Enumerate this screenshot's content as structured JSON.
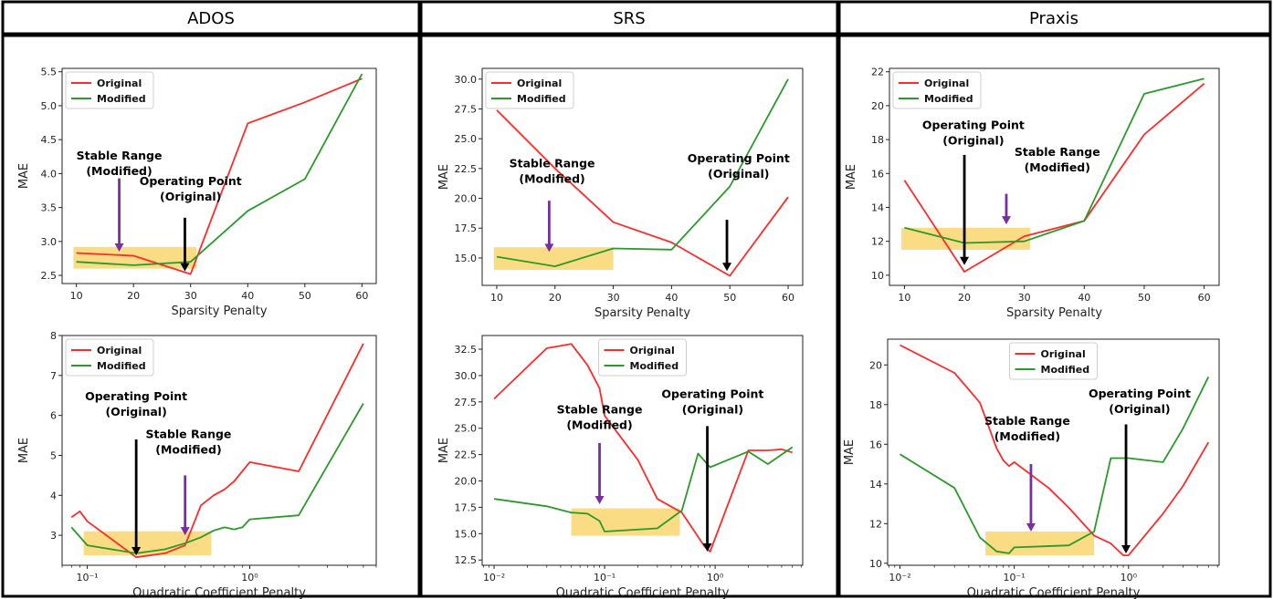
{
  "columns": [
    "ADOS",
    "SRS",
    "Praxis"
  ],
  "colors": {
    "original": "#ff2a2a",
    "modified": "#2a9a2a",
    "highlight": "#f7c534",
    "arrow_purple": "#7a2fa0",
    "arrow_black": "#000000"
  },
  "chart_data": [
    {
      "id": "ados_sparsity",
      "type": "line",
      "xlabel": "Sparsity Penalty",
      "ylabel": "MAE",
      "xscale": "linear",
      "xlim": [
        7.5,
        62.5
      ],
      "ylim": [
        2.38,
        5.55
      ],
      "xticks": [
        10,
        20,
        30,
        40,
        50,
        60
      ],
      "xtick_labels": [
        "10",
        "20",
        "30",
        "40",
        "50",
        "60"
      ],
      "yticks": [
        2.5,
        3.0,
        3.5,
        4.0,
        4.5,
        5.0,
        5.5
      ],
      "ytick_labels": [
        "2.5",
        "3.0",
        "3.5",
        "4.0",
        "4.5",
        "5.0",
        "5.5"
      ],
      "legend_loc": "upper-left",
      "grid": false,
      "series": [
        {
          "name": "Original",
          "color": "#ff2a2a",
          "x": [
            10,
            20,
            30,
            40,
            50,
            60
          ],
          "y": [
            2.83,
            2.79,
            2.52,
            4.74,
            5.05,
            5.4
          ]
        },
        {
          "name": "Modified",
          "color": "#2a9a2a",
          "x": [
            10,
            20,
            30,
            40,
            50,
            60
          ],
          "y": [
            2.7,
            2.65,
            2.7,
            3.45,
            3.92,
            5.47
          ]
        }
      ],
      "highlight": {
        "x0": 9.5,
        "x1": 31,
        "y0": 2.6,
        "y1": 2.92
      },
      "annotations": [
        {
          "lines": [
            "Stable Range",
            "(Modified)"
          ],
          "tx": 17.5,
          "ty": 4.1,
          "ax": 17.5,
          "ay0": 3.93,
          "ay1": 2.85,
          "color": "#7a2fa0"
        },
        {
          "lines": [
            "Operating Point",
            "(Original)"
          ],
          "tx": 30,
          "ty": 3.72,
          "ax": 29,
          "ay0": 3.35,
          "ay1": 2.56,
          "color": "#000000"
        }
      ]
    },
    {
      "id": "srs_sparsity",
      "type": "line",
      "xlabel": "Sparsity Penalty",
      "ylabel": "MAE",
      "xscale": "linear",
      "xlim": [
        7.5,
        62.5
      ],
      "ylim": [
        12.7,
        30.9
      ],
      "xticks": [
        10,
        20,
        30,
        40,
        50,
        60
      ],
      "xtick_labels": [
        "10",
        "20",
        "30",
        "40",
        "50",
        "60"
      ],
      "yticks": [
        15.0,
        17.5,
        20.0,
        22.5,
        25.0,
        27.5,
        30.0
      ],
      "ytick_labels": [
        "15.0",
        "17.5",
        "20.0",
        "22.5",
        "25.0",
        "27.5",
        "30.0"
      ],
      "legend_loc": "upper-left",
      "grid": false,
      "series": [
        {
          "name": "Original",
          "color": "#ff2a2a",
          "x": [
            10,
            20,
            30,
            40,
            50,
            60
          ],
          "y": [
            27.4,
            22.5,
            18.0,
            16.3,
            13.5,
            20.1
          ]
        },
        {
          "name": "Modified",
          "color": "#2a9a2a",
          "x": [
            10,
            20,
            30,
            40,
            50,
            60
          ],
          "y": [
            15.1,
            14.3,
            15.8,
            15.7,
            21.0,
            30.0
          ]
        }
      ],
      "highlight": {
        "x0": 9.5,
        "x1": 30,
        "y0": 14.0,
        "y1": 15.9
      },
      "annotations": [
        {
          "lines": [
            "Stable Range",
            "(Modified)"
          ],
          "tx": 19.5,
          "ty": 22.0,
          "ax": 19,
          "ay0": 19.8,
          "ay1": 15.5,
          "color": "#7a2fa0"
        },
        {
          "lines": [
            "Operating Point",
            "(Original)"
          ],
          "tx": 51.5,
          "ty": 22.4,
          "ax": 49.5,
          "ay0": 18.2,
          "ay1": 13.9,
          "color": "#000000"
        }
      ]
    },
    {
      "id": "praxis_sparsity",
      "type": "line",
      "xlabel": "Sparsity Penalty",
      "ylabel": "MAE",
      "xscale": "linear",
      "xlim": [
        7.5,
        62.5
      ],
      "ylim": [
        9.4,
        22.2
      ],
      "xticks": [
        10,
        20,
        30,
        40,
        50,
        60
      ],
      "xtick_labels": [
        "10",
        "20",
        "30",
        "40",
        "50",
        "60"
      ],
      "yticks": [
        10,
        12,
        14,
        16,
        18,
        20,
        22
      ],
      "ytick_labels": [
        "10",
        "12",
        "14",
        "16",
        "18",
        "20",
        "22"
      ],
      "legend_loc": "upper-left",
      "grid": false,
      "series": [
        {
          "name": "Original",
          "color": "#ff2a2a",
          "x": [
            10,
            20,
            30,
            40,
            50,
            60
          ],
          "y": [
            15.6,
            10.2,
            12.3,
            13.2,
            18.3,
            21.3
          ]
        },
        {
          "name": "Modified",
          "color": "#2a9a2a",
          "x": [
            10,
            20,
            30,
            40,
            50,
            60
          ],
          "y": [
            12.8,
            11.9,
            12.0,
            13.2,
            20.7,
            21.6
          ]
        }
      ],
      "highlight": {
        "x0": 9.5,
        "x1": 31,
        "y0": 11.5,
        "y1": 12.8
      },
      "annotations": [
        {
          "lines": [
            "Operating Point",
            "(Original)"
          ],
          "tx": 21.5,
          "ty": 18.2,
          "ax": 20,
          "ay0": 17.1,
          "ay1": 10.6,
          "color": "#000000"
        },
        {
          "lines": [
            "Stable Range",
            "(Modified)"
          ],
          "tx": 35.5,
          "ty": 16.6,
          "ax": 27,
          "ay0": 14.8,
          "ay1": 13.0,
          "color": "#7a2fa0"
        }
      ]
    },
    {
      "id": "ados_quadratic",
      "type": "line",
      "xlabel": "Quadratic Coefficient Penalty",
      "ylabel": "MAE",
      "xscale": "log",
      "xlim": [
        0.07,
        6.0
      ],
      "ylim": [
        2.25,
        8.0
      ],
      "xticks": [
        0.1,
        1
      ],
      "xtick_labels": [
        "10⁻¹",
        "10⁰"
      ],
      "yticks": [
        3,
        4,
        5,
        6,
        7,
        8
      ],
      "ytick_labels": [
        "3",
        "4",
        "5",
        "6",
        "7",
        "8"
      ],
      "legend_loc": "upper-left",
      "grid": false,
      "series": [
        {
          "name": "Original",
          "color": "#ff2a2a",
          "x": [
            0.08,
            0.09,
            0.1,
            0.2,
            0.3,
            0.4,
            0.5,
            0.6,
            0.7,
            0.8,
            1.0,
            2.0,
            5.0
          ],
          "y": [
            3.45,
            3.6,
            3.35,
            2.45,
            2.55,
            2.75,
            3.75,
            4.0,
            4.15,
            4.35,
            4.83,
            4.6,
            7.8
          ]
        },
        {
          "name": "Modified",
          "color": "#2a9a2a",
          "x": [
            0.08,
            0.1,
            0.2,
            0.3,
            0.4,
            0.5,
            0.6,
            0.7,
            0.8,
            0.9,
            1.0,
            2.0,
            5.0
          ],
          "y": [
            3.2,
            2.75,
            2.55,
            2.65,
            2.8,
            2.95,
            3.12,
            3.2,
            3.15,
            3.2,
            3.4,
            3.5,
            6.3
          ]
        }
      ],
      "highlight": {
        "x0": 0.095,
        "x1": 0.58,
        "y0": 2.5,
        "y1": 3.1
      },
      "annotations": [
        {
          "lines": [
            "Operating Point",
            "(Original)"
          ],
          "tx": 0.2,
          "ty": 6.2,
          "ax": 0.2,
          "ay0": 5.4,
          "ay1": 2.5,
          "color": "#000000"
        },
        {
          "lines": [
            "Stable Range",
            "(Modified)"
          ],
          "tx": 0.42,
          "ty": 5.25,
          "ax": 0.4,
          "ay0": 4.5,
          "ay1": 3.0,
          "color": "#7a2fa0"
        }
      ]
    },
    {
      "id": "srs_quadratic",
      "type": "line",
      "xlabel": "Quadratic Coefficient Penalty",
      "ylabel": "MAE",
      "xscale": "log",
      "xlim": [
        0.0078,
        6.2
      ],
      "ylim": [
        12.0,
        33.8
      ],
      "xticks": [
        0.01,
        0.1,
        1
      ],
      "xtick_labels": [
        "10⁻²",
        "10⁻¹",
        "10⁰"
      ],
      "yticks": [
        12.5,
        15.0,
        17.5,
        20.0,
        22.5,
        25.0,
        27.5,
        30.0,
        32.5
      ],
      "ytick_labels": [
        "12.5",
        "15.0",
        "17.5",
        "20.0",
        "22.5",
        "25.0",
        "27.5",
        "30.0",
        "32.5"
      ],
      "legend_loc": "upper-center",
      "grid": false,
      "series": [
        {
          "name": "Original",
          "color": "#ff2a2a",
          "x": [
            0.01,
            0.03,
            0.05,
            0.07,
            0.09,
            0.1,
            0.2,
            0.3,
            0.5,
            0.8,
            0.9,
            2.0,
            3.0,
            4.0,
            5.0
          ],
          "y": [
            27.8,
            32.6,
            33.0,
            31.0,
            28.8,
            26.2,
            22.0,
            18.3,
            17.0,
            13.8,
            13.3,
            22.9,
            22.9,
            23.0,
            22.7
          ]
        },
        {
          "name": "Modified",
          "color": "#2a9a2a",
          "x": [
            0.01,
            0.03,
            0.05,
            0.07,
            0.09,
            0.1,
            0.3,
            0.5,
            0.7,
            0.9,
            2.0,
            3.0,
            5.0
          ],
          "y": [
            18.3,
            17.6,
            17.0,
            16.9,
            16.2,
            15.2,
            15.5,
            17.2,
            22.6,
            21.3,
            22.8,
            21.6,
            23.2
          ]
        }
      ],
      "highlight": {
        "x0": 0.05,
        "x1": 0.48,
        "y0": 14.8,
        "y1": 17.4
      },
      "annotations": [
        {
          "lines": [
            "Stable Range",
            "(Modified)"
          ],
          "tx": 0.09,
          "ty": 25.7,
          "ax": 0.09,
          "ay0": 23.6,
          "ay1": 17.8,
          "color": "#7a2fa0"
        },
        {
          "lines": [
            "Operating Point",
            "(Original)"
          ],
          "tx": 0.95,
          "ty": 27.2,
          "ax": 0.85,
          "ay0": 25.2,
          "ay1": 13.3,
          "color": "#000000"
        }
      ]
    },
    {
      "id": "praxis_quadratic",
      "type": "line",
      "xlabel": "Quadratic Coefficient Penalty",
      "ylabel": "MAE",
      "xscale": "log",
      "xlim": [
        0.0078,
        6.2
      ],
      "ylim": [
        9.9,
        21.3
      ],
      "xticks": [
        0.01,
        0.1,
        1
      ],
      "xtick_labels": [
        "10⁻²",
        "10⁻¹",
        "10⁰"
      ],
      "yticks": [
        10,
        12,
        14,
        16,
        18,
        20
      ],
      "ytick_labels": [
        "10",
        "12",
        "14",
        "16",
        "18",
        "20"
      ],
      "legend_loc": "upper-center",
      "grid": false,
      "series": [
        {
          "name": "Original",
          "color": "#ff2a2a",
          "x": [
            0.01,
            0.03,
            0.05,
            0.07,
            0.08,
            0.09,
            0.1,
            0.2,
            0.3,
            0.5,
            0.7,
            0.9,
            1.0,
            2.0,
            3.0,
            5.0
          ],
          "y": [
            21.0,
            19.6,
            18.1,
            15.8,
            15.2,
            14.9,
            15.1,
            13.8,
            12.8,
            11.4,
            11.0,
            10.4,
            10.4,
            12.5,
            13.9,
            16.1
          ]
        },
        {
          "name": "Modified",
          "color": "#2a9a2a",
          "x": [
            0.01,
            0.03,
            0.05,
            0.07,
            0.09,
            0.1,
            0.3,
            0.5,
            0.7,
            1.0,
            2.0,
            3.0,
            5.0
          ],
          "y": [
            15.5,
            13.8,
            11.3,
            10.6,
            10.5,
            10.8,
            10.9,
            11.6,
            15.3,
            15.3,
            15.1,
            16.8,
            19.4
          ]
        }
      ],
      "highlight": {
        "x0": 0.056,
        "x1": 0.5,
        "y0": 10.4,
        "y1": 11.6
      },
      "annotations": [
        {
          "lines": [
            "Stable Range",
            "(Modified)"
          ],
          "tx": 0.13,
          "ty": 16.6,
          "ax": 0.14,
          "ay0": 15.0,
          "ay1": 11.6,
          "color": "#7a2fa0"
        },
        {
          "lines": [
            "Operating Point",
            "(Original)"
          ],
          "tx": 1.25,
          "ty": 18.0,
          "ax": 0.95,
          "ay0": 17.0,
          "ay1": 10.5,
          "color": "#000000"
        }
      ]
    }
  ]
}
